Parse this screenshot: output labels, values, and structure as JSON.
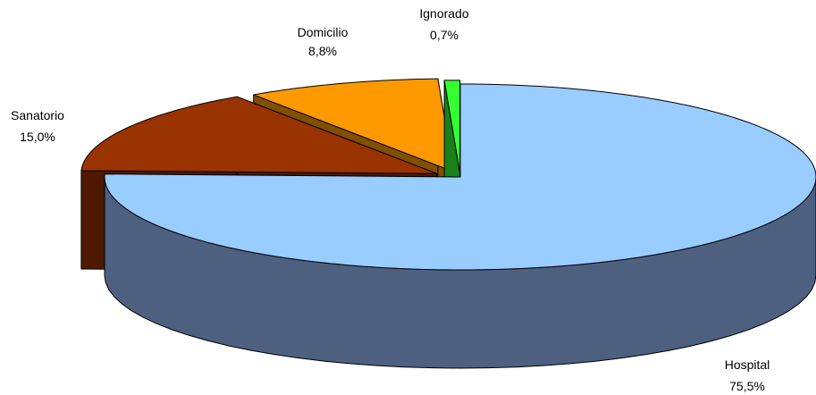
{
  "chart_data": {
    "type": "pie",
    "three_d": true,
    "exploded": true,
    "title": "",
    "legend": "none",
    "slices": [
      {
        "name": "Hospital",
        "value": 75.5,
        "label": "75,5%",
        "color_top": "#99ccff",
        "color_side": "#4d6080"
      },
      {
        "name": "Sanatorio",
        "value": 15.0,
        "label": "15,0%",
        "color_top": "#993300",
        "color_side": "#4d1a00"
      },
      {
        "name": "Domicilio",
        "value": 8.8,
        "label": "8,8%",
        "color_top": "#ff9900",
        "color_side": "#805000"
      },
      {
        "name": "Ignorado",
        "value": 0.7,
        "label": "0,7%",
        "color_top": "#33ff33",
        "color_side": "#1a801a"
      }
    ]
  }
}
